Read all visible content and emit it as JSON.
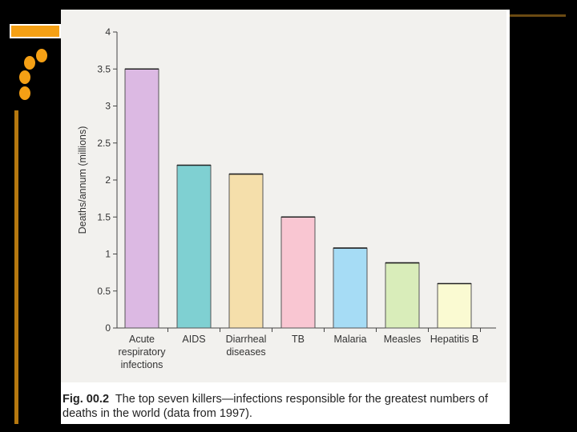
{
  "chart_data": {
    "type": "bar",
    "ylabel": "Deaths/annum (millions)",
    "ylim": [
      0,
      4
    ],
    "yticks": [
      0,
      0.5,
      1,
      1.5,
      2,
      2.5,
      3,
      3.5,
      4
    ],
    "ytick_labels": [
      "0",
      "0.5",
      "1",
      "1.5",
      "2",
      "2.5",
      "3",
      "3.5",
      "4"
    ],
    "categories": [
      [
        "Acute",
        "respiratory",
        "infections"
      ],
      [
        "AIDS"
      ],
      [
        "Diarrheal",
        "diseases"
      ],
      [
        "TB"
      ],
      [
        "Malaria"
      ],
      [
        "Measles"
      ],
      [
        "Hepatitis B"
      ]
    ],
    "values": [
      3.5,
      2.2,
      2.08,
      1.5,
      1.08,
      0.88,
      0.6
    ],
    "colors": [
      "#dcb9e3",
      "#7fd0d2",
      "#f5dfab",
      "#f9c6d2",
      "#a6dcf5",
      "#d9edba",
      "#fafad2"
    ],
    "grid": false
  },
  "caption": {
    "label": "Fig. 00.2",
    "text": "The top seven killers—infections responsible for the greatest numbers of deaths in the world (data from 1997)."
  },
  "colors": {
    "accent": "#f5a015",
    "background": "#000000"
  }
}
